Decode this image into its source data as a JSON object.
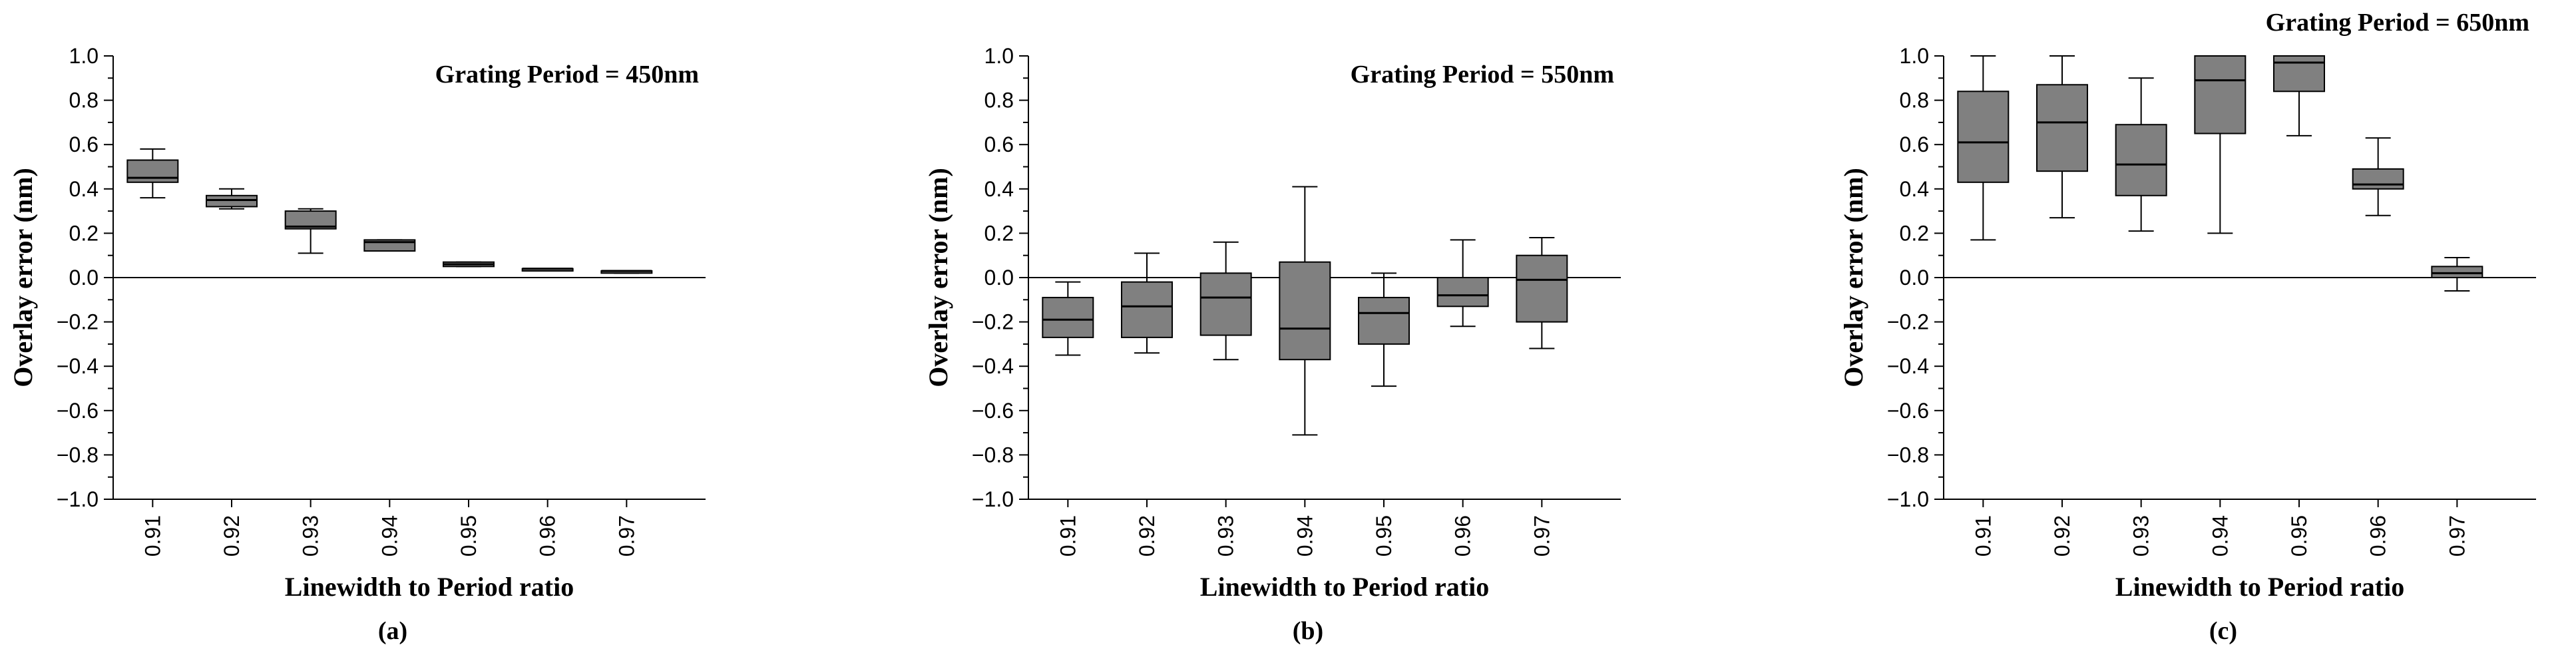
{
  "chart_data": [
    {
      "type": "box",
      "annotation": "Grating Period = 450nm",
      "caption": "(a)",
      "xlabel": "Linewidth to Period ratio",
      "ylabel": "Overlay error (nm)",
      "ylim": [
        -1.0,
        1.0
      ],
      "yticks": [
        "1.0",
        "0.8",
        "0.6",
        "0.4",
        "0.2",
        "0.0",
        "−0.2",
        "−0.4",
        "−0.6",
        "−0.8",
        "−1.0"
      ],
      "categories": [
        "0.91",
        "0.92",
        "0.93",
        "0.94",
        "0.95",
        "0.96",
        "0.97"
      ],
      "boxes": [
        {
          "min": 0.36,
          "q1": 0.43,
          "median": 0.45,
          "q3": 0.53,
          "max": 0.58
        },
        {
          "min": 0.31,
          "q1": 0.32,
          "median": 0.35,
          "q3": 0.37,
          "max": 0.4
        },
        {
          "min": 0.11,
          "q1": 0.22,
          "median": 0.23,
          "q3": 0.3,
          "max": 0.31
        },
        {
          "min": 0.12,
          "q1": 0.12,
          "median": 0.16,
          "q3": 0.17,
          "max": 0.17
        },
        {
          "min": 0.05,
          "q1": 0.05,
          "median": 0.06,
          "q3": 0.07,
          "max": 0.07
        },
        {
          "min": 0.03,
          "q1": 0.03,
          "median": 0.04,
          "q3": 0.04,
          "max": 0.04
        },
        {
          "min": 0.02,
          "q1": 0.02,
          "median": 0.03,
          "q3": 0.03,
          "max": 0.03
        }
      ]
    },
    {
      "type": "box",
      "annotation": "Grating Period = 550nm",
      "caption": "(b)",
      "xlabel": "Linewidth to Period ratio",
      "ylabel": "Overlay error (nm)",
      "ylim": [
        -1.0,
        1.0
      ],
      "yticks": [
        "1.0",
        "0.8",
        "0.6",
        "0.4",
        "0.2",
        "0.0",
        "−0.2",
        "−0.4",
        "−0.6",
        "−0.8",
        "−1.0"
      ],
      "categories": [
        "0.91",
        "0.92",
        "0.93",
        "0.94",
        "0.95",
        "0.96",
        "0.97"
      ],
      "boxes": [
        {
          "min": -0.35,
          "q1": -0.27,
          "median": -0.19,
          "q3": -0.09,
          "max": -0.02
        },
        {
          "min": -0.34,
          "q1": -0.27,
          "median": -0.13,
          "q3": -0.02,
          "max": 0.11
        },
        {
          "min": -0.37,
          "q1": -0.26,
          "median": -0.09,
          "q3": 0.02,
          "max": 0.16
        },
        {
          "min": -0.71,
          "q1": -0.37,
          "median": -0.23,
          "q3": 0.07,
          "max": 0.41
        },
        {
          "min": -0.49,
          "q1": -0.3,
          "median": -0.16,
          "q3": -0.09,
          "max": 0.02
        },
        {
          "min": -0.22,
          "q1": -0.13,
          "median": -0.08,
          "q3": 0.0,
          "max": 0.17
        },
        {
          "min": -0.32,
          "q1": -0.2,
          "median": -0.01,
          "q3": 0.1,
          "max": 0.18
        }
      ]
    },
    {
      "type": "box",
      "annotation": "Grating Period = 650nm",
      "caption": "(c)",
      "xlabel": "Linewidth to Period ratio",
      "ylabel": "Overlay error (nm)",
      "ylim": [
        -1.0,
        1.0
      ],
      "yticks": [
        "1.0",
        "0.8",
        "0.6",
        "0.4",
        "0.2",
        "0.0",
        "−0.2",
        "−0.4",
        "−0.6",
        "−0.8",
        "−1.0"
      ],
      "categories": [
        "0.91",
        "0.92",
        "0.93",
        "0.94",
        "0.95",
        "0.96",
        "0.97"
      ],
      "boxes": [
        {
          "min": 0.17,
          "q1": 0.43,
          "median": 0.61,
          "q3": 0.84,
          "max": 1.0
        },
        {
          "min": 0.27,
          "q1": 0.48,
          "median": 0.7,
          "q3": 0.87,
          "max": 1.0
        },
        {
          "min": 0.21,
          "q1": 0.37,
          "median": 0.51,
          "q3": 0.69,
          "max": 0.9
        },
        {
          "min": 0.2,
          "q1": 0.65,
          "median": 0.89,
          "q3": 1.0,
          "max": 1.0
        },
        {
          "min": 0.64,
          "q1": 0.84,
          "median": 0.97,
          "q3": 1.0,
          "max": 1.0
        },
        {
          "min": 0.28,
          "q1": 0.4,
          "median": 0.42,
          "q3": 0.49,
          "max": 0.63
        },
        {
          "min": -0.06,
          "q1": 0.0,
          "median": 0.02,
          "q3": 0.05,
          "max": 0.09
        }
      ]
    }
  ],
  "colors": {
    "box_fill": "#808080",
    "line": "#000000"
  }
}
